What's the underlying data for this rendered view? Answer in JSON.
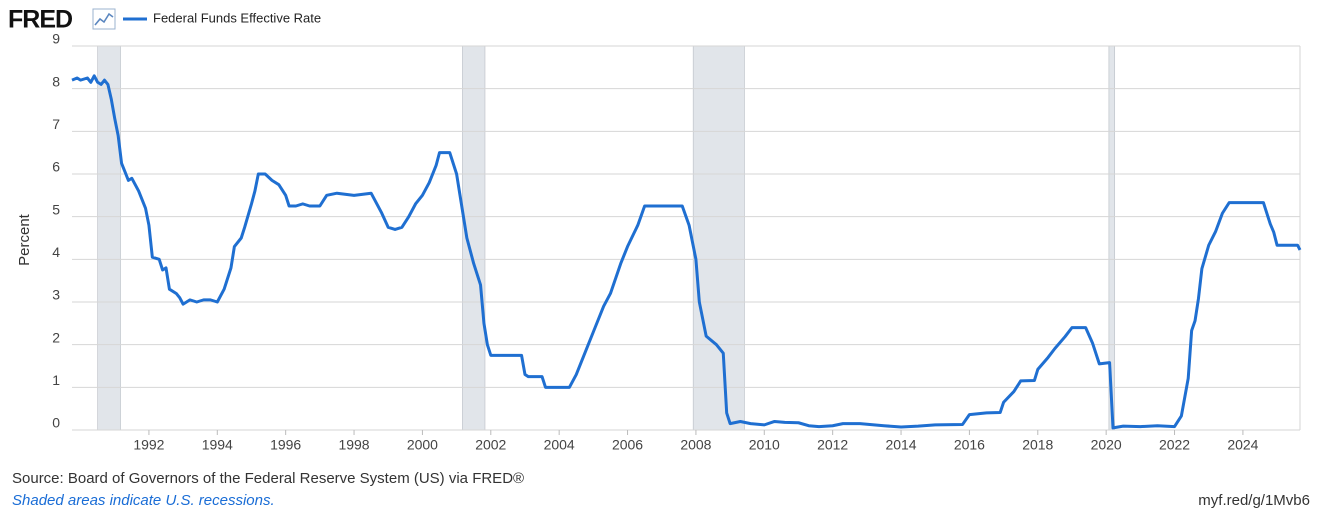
{
  "chart_data": {
    "type": "line",
    "logo": "FRED",
    "y_label": "Percent",
    "source": "Source: Board of Governors of the Federal Reserve System (US) via FRED®",
    "note": "Shaded areas indicate U.S. recessions.",
    "short_url": "myf.red/g/1Mvb6",
    "grid": true,
    "recession_color": "#e1e5ea",
    "recessions": [
      {
        "start": 1990.5,
        "end": 1991.17
      },
      {
        "start": 2001.17,
        "end": 2001.83
      },
      {
        "start": 2007.92,
        "end": 2009.42
      },
      {
        "start": 2020.08,
        "end": 2020.25
      }
    ],
    "xlim": [
      1989.75,
      2025.67
    ],
    "xticks": [
      1992,
      1994,
      1996,
      1998,
      2000,
      2002,
      2004,
      2006,
      2008,
      2010,
      2012,
      2014,
      2016,
      2018,
      2020,
      2022,
      2024
    ],
    "ylim": [
      0,
      9
    ],
    "yticks": [
      0,
      1,
      2,
      3,
      4,
      5,
      6,
      7,
      8,
      9
    ],
    "x": [
      1989.75,
      1989.9,
      1990.0,
      1990.2,
      1990.3,
      1990.4,
      1990.5,
      1990.6,
      1990.7,
      1990.8,
      1990.9,
      1991.0,
      1991.1,
      1991.2,
      1991.3,
      1991.4,
      1991.5,
      1991.7,
      1991.9,
      1992.0,
      1992.1,
      1992.3,
      1992.4,
      1992.5,
      1992.6,
      1992.8,
      1992.9,
      1993.0,
      1993.2,
      1993.4,
      1993.6,
      1993.8,
      1994.0,
      1994.2,
      1994.4,
      1994.5,
      1994.7,
      1994.8,
      1995.0,
      1995.1,
      1995.2,
      1995.4,
      1995.6,
      1995.8,
      1996.0,
      1996.1,
      1996.3,
      1996.5,
      1996.7,
      1997.0,
      1997.2,
      1997.5,
      1998.0,
      1998.5,
      1998.8,
      1999.0,
      1999.2,
      1999.4,
      1999.6,
      1999.8,
      2000.0,
      2000.2,
      2000.4,
      2000.5,
      2000.8,
      2001.0,
      2001.1,
      2001.3,
      2001.5,
      2001.7,
      2001.8,
      2001.9,
      2002.0,
      2002.4,
      2002.9,
      2003.0,
      2003.1,
      2003.5,
      2003.6,
      2004.0,
      2004.3,
      2004.5,
      2004.8,
      2005.0,
      2005.3,
      2005.5,
      2005.8,
      2006.0,
      2006.3,
      2006.5,
      2007.0,
      2007.6,
      2007.8,
      2008.0,
      2008.1,
      2008.3,
      2008.6,
      2008.8,
      2008.9,
      2009.0,
      2009.3,
      2009.6,
      2010.0,
      2010.3,
      2010.6,
      2011.0,
      2011.3,
      2011.6,
      2012.0,
      2012.3,
      2012.8,
      2013.5,
      2014.0,
      2014.5,
      2015.0,
      2015.8,
      2016.0,
      2016.5,
      2016.9,
      2017.0,
      2017.3,
      2017.5,
      2017.9,
      2018.0,
      2018.3,
      2018.5,
      2018.8,
      2019.0,
      2019.4,
      2019.6,
      2019.8,
      2020.1,
      2020.2,
      2020.5,
      2021.0,
      2021.5,
      2022.0,
      2022.2,
      2022.4,
      2022.5,
      2022.6,
      2022.7,
      2022.8,
      2023.0,
      2023.2,
      2023.4,
      2023.6,
      2024.6,
      2024.8,
      2024.9,
      2025.0,
      2025.6,
      2025.67
    ],
    "series": [
      {
        "name": "Federal Funds Effective Rate",
        "color": "#1f6fd1",
        "values": [
          8.2,
          8.25,
          8.2,
          8.25,
          8.15,
          8.3,
          8.15,
          8.1,
          8.2,
          8.1,
          7.75,
          7.3,
          6.9,
          6.25,
          6.05,
          5.85,
          5.9,
          5.6,
          5.2,
          4.8,
          4.05,
          4.0,
          3.75,
          3.8,
          3.3,
          3.2,
          3.1,
          2.95,
          3.05,
          3.0,
          3.05,
          3.05,
          3.0,
          3.3,
          3.8,
          4.3,
          4.5,
          4.75,
          5.3,
          5.6,
          6.0,
          6.0,
          5.85,
          5.75,
          5.5,
          5.25,
          5.25,
          5.3,
          5.25,
          5.25,
          5.5,
          5.55,
          5.5,
          5.55,
          5.1,
          4.75,
          4.7,
          4.75,
          5.0,
          5.3,
          5.5,
          5.8,
          6.2,
          6.5,
          6.5,
          6.0,
          5.5,
          4.5,
          3.9,
          3.4,
          2.5,
          2.0,
          1.75,
          1.75,
          1.75,
          1.3,
          1.25,
          1.25,
          1.0,
          1.0,
          1.0,
          1.3,
          1.9,
          2.3,
          2.9,
          3.2,
          3.9,
          4.3,
          4.8,
          5.25,
          5.25,
          5.25,
          4.8,
          4.0,
          3.0,
          2.2,
          2.0,
          1.8,
          0.4,
          0.15,
          0.2,
          0.15,
          0.12,
          0.2,
          0.18,
          0.17,
          0.1,
          0.08,
          0.1,
          0.15,
          0.15,
          0.1,
          0.07,
          0.09,
          0.12,
          0.13,
          0.36,
          0.4,
          0.41,
          0.65,
          0.9,
          1.15,
          1.16,
          1.42,
          1.7,
          1.91,
          2.19,
          2.4,
          2.4,
          2.04,
          1.55,
          1.58,
          0.05,
          0.09,
          0.08,
          0.1,
          0.08,
          0.33,
          1.21,
          2.33,
          2.56,
          3.08,
          3.78,
          4.33,
          4.65,
          5.08,
          5.33,
          5.33,
          4.83,
          4.64,
          4.33,
          4.33,
          4.22
        ]
      }
    ]
  }
}
